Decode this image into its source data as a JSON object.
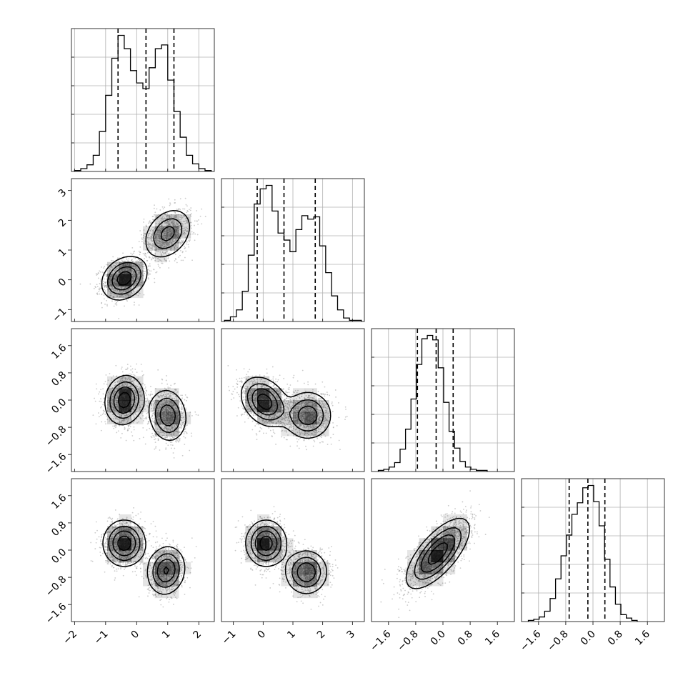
{
  "chart_data": {
    "type": "corner",
    "grid": true,
    "colors": {
      "line": "#000000",
      "grid": "#b0b0b0",
      "scatter": "#9e9e9e",
      "density": "#000000"
    },
    "params": [
      {
        "range": [
          -2.1,
          2.5
        ],
        "ticks": [
          -2,
          -1,
          0,
          1,
          2
        ],
        "tick_labels": [
          "−2",
          "−1",
          "0",
          "1",
          "2"
        ]
      },
      {
        "range": [
          -1.4,
          3.4
        ],
        "ticks": [
          -1,
          0,
          1,
          2,
          3
        ],
        "tick_labels": [
          "−1",
          "0",
          "1",
          "2",
          "3"
        ]
      },
      {
        "range": [
          -2.1,
          2.1
        ],
        "ticks": [
          -1.6,
          -0.8,
          0.0,
          0.8,
          1.6
        ],
        "tick_labels": [
          "−1.6",
          "−0.8",
          "0.0",
          "0.8",
          "1.6"
        ]
      },
      {
        "range": [
          -2.1,
          2.1
        ],
        "ticks": [
          -1.6,
          -0.8,
          0.0,
          0.8,
          1.6
        ],
        "tick_labels": [
          "−1.6",
          "−0.8",
          "0.0",
          "0.8",
          "1.6"
        ]
      }
    ],
    "histograms": [
      {
        "x_start": -2.0,
        "bin_width": 0.2,
        "counts": [
          10,
          30,
          70,
          170,
          420,
          800,
          1190,
          1430,
          1290,
          1060,
          930,
          870,
          1090,
          1290,
          1330,
          960,
          630,
          360,
          170,
          80,
          30,
          10
        ],
        "quantile_lines": [
          -0.6,
          0.3,
          1.2
        ]
      },
      {
        "x_start": -1.3,
        "bin_width": 0.2,
        "counts": [
          10,
          40,
          100,
          260,
          570,
          1010,
          1140,
          1170,
          950,
          760,
          700,
          600,
          790,
          910,
          880,
          900,
          650,
          420,
          220,
          100,
          30,
          10,
          10
        ],
        "quantile_lines": [
          -0.2,
          0.7,
          1.75
        ]
      },
      {
        "x_start": -1.9,
        "bin_width": 0.16,
        "counts": [
          10,
          20,
          40,
          80,
          200,
          380,
          650,
          960,
          1190,
          1220,
          1180,
          930,
          620,
          360,
          210,
          90,
          40,
          20,
          10,
          10
        ],
        "quantile_lines": [
          -0.75,
          -0.2,
          0.3
        ]
      },
      {
        "x_start": -1.9,
        "bin_width": 0.16,
        "counts": [
          10,
          20,
          40,
          90,
          200,
          370,
          570,
          750,
          930,
          1030,
          1160,
          1180,
          1040,
          830,
          540,
          300,
          150,
          60,
          30,
          10
        ],
        "quantile_lines": [
          -0.7,
          -0.15,
          0.35
        ]
      }
    ],
    "pairs": [
      {
        "x_param": 0,
        "y_param": 1,
        "modes": [
          {
            "mean": [
              -0.4,
              0.05
            ],
            "sigma": [
              0.35,
              0.35
            ],
            "rho": 0.25,
            "weight": 0.55
          },
          {
            "mean": [
              1.0,
              1.55
            ],
            "sigma": [
              0.38,
              0.42
            ],
            "rho": 0.3,
            "weight": 0.45
          }
        ]
      },
      {
        "x_param": 0,
        "y_param": 2,
        "modes": [
          {
            "mean": [
              -0.4,
              0.0
            ],
            "sigma": [
              0.3,
              0.35
            ],
            "rho": 0.1,
            "weight": 0.55
          },
          {
            "mean": [
              1.0,
              -0.45
            ],
            "sigma": [
              0.3,
              0.38
            ],
            "rho": -0.1,
            "weight": 0.45
          }
        ]
      },
      {
        "x_param": 1,
        "y_param": 2,
        "modes": [
          {
            "mean": [
              0.05,
              -0.05
            ],
            "sigma": [
              0.38,
              0.35
            ],
            "rho": -0.3,
            "weight": 0.55
          },
          {
            "mean": [
              1.5,
              -0.45
            ],
            "sigma": [
              0.4,
              0.35
            ],
            "rho": 0.0,
            "weight": 0.45
          }
        ]
      },
      {
        "x_param": 0,
        "y_param": 3,
        "modes": [
          {
            "mean": [
              -0.4,
              0.2
            ],
            "sigma": [
              0.33,
              0.33
            ],
            "rho": 0.0,
            "weight": 0.55
          },
          {
            "mean": [
              0.95,
              -0.6
            ],
            "sigma": [
              0.3,
              0.35
            ],
            "rho": 0.1,
            "weight": 0.45
          }
        ]
      },
      {
        "x_param": 1,
        "y_param": 3,
        "modes": [
          {
            "mean": [
              0.1,
              0.2
            ],
            "sigma": [
              0.33,
              0.33
            ],
            "rho": 0.0,
            "weight": 0.55
          },
          {
            "mean": [
              1.45,
              -0.65
            ],
            "sigma": [
              0.35,
              0.32
            ],
            "rho": 0.0,
            "weight": 0.45
          }
        ]
      },
      {
        "x_param": 2,
        "y_param": 3,
        "modes": [
          {
            "mean": [
              -0.15,
              -0.1
            ],
            "sigma": [
              0.45,
              0.5
            ],
            "rho": 0.7,
            "weight": 1.0
          }
        ]
      }
    ]
  }
}
